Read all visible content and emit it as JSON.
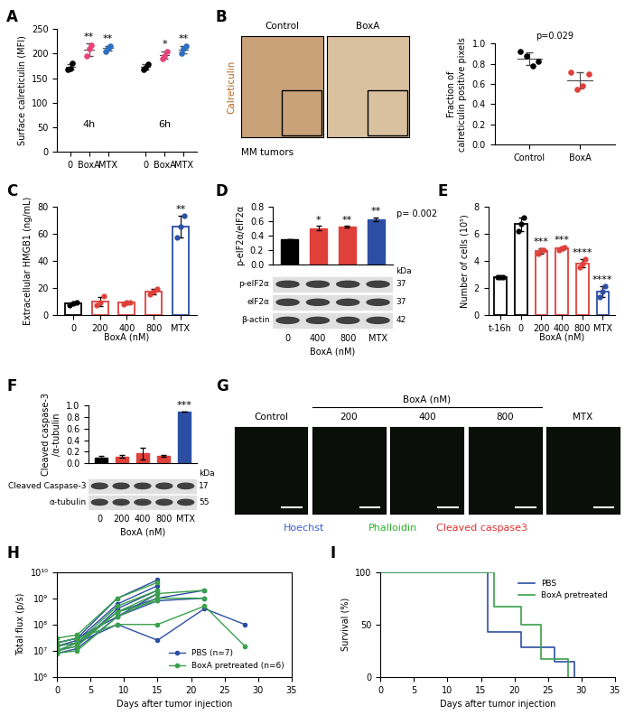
{
  "chart_data": [
    {
      "panel": "A",
      "type": "dot",
      "ylabel": "Surface calreticulin (MFI)",
      "groups": [
        "4h",
        "6h"
      ],
      "categories": [
        "0",
        "BoxA",
        "MTX",
        "0",
        "BoxA",
        "MTX"
      ],
      "colors": [
        "#000000",
        "#e8437a",
        "#2c6fc0",
        "#000000",
        "#e8437a",
        "#2c6fc0"
      ],
      "values": [
        173,
        208,
        211,
        173,
        197,
        208
      ],
      "error": [
        6,
        12,
        5,
        5,
        8,
        8
      ],
      "points": [
        [
          168,
          170,
          180
        ],
        [
          195,
          210,
          218
        ],
        [
          205,
          212,
          215
        ],
        [
          168,
          172,
          178
        ],
        [
          190,
          195,
          205
        ],
        [
          200,
          210,
          215
        ]
      ],
      "annotations": [
        "",
        "**",
        "**",
        "",
        "*",
        "**"
      ],
      "ylim": [
        0,
        250
      ],
      "yticks": [
        0,
        50,
        100,
        150,
        200,
        250
      ]
    },
    {
      "panel": "B",
      "type": "image",
      "titles": [
        "Control",
        "BoxA"
      ],
      "stain": "Calreticulin",
      "sample": "MM tumors"
    },
    {
      "type": "dot",
      "ylabel": "Fraction of\ncalreticulin positive pixels",
      "categories": [
        "Control",
        "BoxA"
      ],
      "colors": [
        "#000000",
        "#e0403a"
      ],
      "values": [
        0.85,
        0.64
      ],
      "error": [
        0.06,
        0.08
      ],
      "points": [
        [
          0.92,
          0.88,
          0.78,
          0.82
        ],
        [
          0.72,
          0.55,
          0.58,
          0.7
        ]
      ],
      "annotations": [
        "p=0.029"
      ],
      "ylim": [
        0.0,
        1.0
      ],
      "yticks": [
        0.0,
        0.2,
        0.4,
        0.6,
        0.8,
        1.0
      ]
    },
    {
      "panel": "C",
      "type": "bar",
      "ylabel": "Extracellular HMGB1 (ng/mL)",
      "categories": [
        "0",
        "200",
        "400",
        "800",
        "MTX"
      ],
      "group_label": "BoxA (nM)",
      "colors": [
        "#000000",
        "#e0403a",
        "#e0403a",
        "#e0403a",
        "#2c4fa3"
      ],
      "values": [
        8.5,
        10,
        9,
        17,
        65
      ],
      "error": [
        0.8,
        3.5,
        0.9,
        2.0,
        8.0
      ],
      "points": [
        [
          7.5,
          8.5,
          9
        ],
        [
          7,
          9,
          14
        ],
        [
          8,
          9,
          9.5
        ],
        [
          15,
          17,
          19
        ],
        [
          57,
          65,
          73
        ]
      ],
      "annotations": [
        "",
        "",
        "",
        "",
        "**"
      ],
      "ylim": [
        0,
        80
      ],
      "yticks": [
        0,
        20,
        40,
        60,
        80
      ]
    },
    {
      "panel": "D",
      "type": "bar",
      "ylabel": "p-eIF2α/eIF2α",
      "categories": [
        "0",
        "400",
        "800",
        "MTX"
      ],
      "group_label": "BoxA (nM)",
      "colors": [
        "#000000",
        "#e0403a",
        "#e0403a",
        "#2c4fa3"
      ],
      "values": [
        0.35,
        0.5,
        0.52,
        0.62
      ],
      "error": [
        0.0,
        0.03,
        0.01,
        0.03
      ],
      "annotations": [
        "",
        "*",
        "**",
        "**",
        "p= 0.002"
      ],
      "ylim": [
        0.0,
        0.8
      ],
      "yticks": [
        0.0,
        0.2,
        0.4,
        0.6,
        0.8
      ],
      "blot": {
        "unit": "kDa",
        "rows": [
          {
            "label": "p-eIF2α",
            "kDa": 37
          },
          {
            "label": "eIF2α",
            "kDa": 37
          },
          {
            "label": "β-actin",
            "kDa": 42
          }
        ]
      }
    },
    {
      "panel": "E",
      "type": "bar",
      "ylabel": "Number of cells (10⁵)",
      "categories": [
        "t-16h",
        "0",
        "200",
        "400",
        "800",
        "MTX"
      ],
      "group_label": "BoxA (nM)",
      "colors": [
        "#000000",
        "#000000",
        "#e0403a",
        "#e0403a",
        "#e0403a",
        "#2c4fa3"
      ],
      "values": [
        2.8,
        6.7,
        4.7,
        4.9,
        3.8,
        1.7
      ],
      "error": [
        0.0,
        0.5,
        0.2,
        0.1,
        0.3,
        0.4
      ],
      "points": [
        [
          2.8,
          2.8,
          2.8
        ],
        [
          6.2,
          6.7,
          7.2
        ],
        [
          4.5,
          4.8,
          4.8
        ],
        [
          4.8,
          4.9,
          5.0
        ],
        [
          3.5,
          3.8,
          4.1
        ],
        [
          1.3,
          1.7,
          2.1
        ]
      ],
      "annotations": [
        "",
        "",
        "***",
        "***",
        "****",
        "****"
      ],
      "ylim": [
        0,
        8
      ],
      "yticks": [
        0,
        2,
        4,
        6,
        8
      ]
    },
    {
      "panel": "F",
      "type": "bar",
      "ylabel": "Cleaved caspase-3\n/α-tubulin",
      "categories": [
        "0",
        "200",
        "400",
        "800",
        "MTX"
      ],
      "group_label": "BoxA (nM)",
      "colors": [
        "#000000",
        "#e0403a",
        "#e0403a",
        "#e0403a",
        "#2c4fa3"
      ],
      "values": [
        0.1,
        0.12,
        0.17,
        0.13,
        0.9
      ],
      "error": [
        0.03,
        0.02,
        0.1,
        0.02,
        0.0
      ],
      "annotations": [
        "",
        "",
        "",
        "",
        "***"
      ],
      "ylim": [
        0.0,
        1.0
      ],
      "yticks": [
        0.0,
        0.2,
        0.4,
        0.6,
        0.8,
        1.0
      ],
      "blot": {
        "unit": "kDa",
        "rows": [
          {
            "label": "Cleaved Caspase-3",
            "kDa": 17
          },
          {
            "label": "α-tubulin",
            "kDa": 55
          }
        ]
      }
    },
    {
      "panel": "G",
      "type": "image",
      "titles": [
        "Control",
        "200",
        "400",
        "800",
        "MTX"
      ],
      "group_label": "BoxA (nM)",
      "channels": [
        {
          "name": "Hoechst",
          "color": "#3a5fd9"
        },
        {
          "name": "Phalloidin",
          "color": "#2bb52b"
        },
        {
          "name": "Cleaved caspase3",
          "color": "#e03030"
        }
      ]
    },
    {
      "panel": "H",
      "type": "line",
      "log": "y",
      "xlabel": "Days after tumor injection",
      "ylabel": "Total flux (p/s)",
      "legend": "lower right",
      "xlim": [
        0,
        35
      ],
      "xticks": [
        0,
        5,
        10,
        15,
        20,
        25,
        30,
        35
      ],
      "ylim": [
        1000000,
        10000000000
      ],
      "yticks": [
        {
          "value": 1000000,
          "label": "10⁶"
        },
        {
          "value": 10000000,
          "label": "10⁷"
        },
        {
          "value": 100000000,
          "label": "10⁸"
        },
        {
          "value": 1000000000,
          "label": "10⁹"
        },
        {
          "value": 10000000000,
          "label": "10¹⁰"
        }
      ],
      "series": [
        {
          "name": "PBS (n=7)",
          "color": "#2c4fa3",
          "marker": "o",
          "lines": [
            {
              "x": [
                0,
                3,
                9,
                15
              ],
              "values": [
                20000000,
                30000000,
                1000000000,
                5000000000
              ]
            },
            {
              "x": [
                0,
                3,
                9,
                15
              ],
              "values": [
                15000000,
                25000000,
                600000000,
                3000000000
              ]
            },
            {
              "x": [
                0,
                3,
                9,
                15,
                22
              ],
              "values": [
                10000000,
                20000000,
                300000000,
                1000000000,
                2000000000
              ]
            },
            {
              "x": [
                0,
                3,
                9,
                15,
                22,
                28
              ],
              "values": [
                15000000,
                20000000,
                100000000,
                25000000,
                400000000,
                100000000
              ]
            },
            {
              "x": [
                0,
                3,
                9,
                15
              ],
              "values": [
                10000000,
                15000000,
                400000000,
                2000000000
              ]
            },
            {
              "x": [
                0,
                3,
                9,
                15
              ],
              "values": [
                8000000,
                12000000,
                200000000,
                1500000000
              ]
            },
            {
              "x": [
                0,
                3,
                9,
                15,
                22
              ],
              "values": [
                20000000,
                30000000,
                200000000,
                800000000,
                1000000000
              ]
            }
          ]
        },
        {
          "name": "BoxA pretreated (n=6)",
          "color": "#3aa04a",
          "marker": "o",
          "lines": [
            {
              "x": [
                0,
                3,
                9,
                15
              ],
              "values": [
                30000000,
                40000000,
                1000000000,
                4000000000
              ]
            },
            {
              "x": [
                0,
                3,
                9,
                15
              ],
              "values": [
                15000000,
                20000000,
                500000000,
                2000000000
              ]
            },
            {
              "x": [
                0,
                3,
                9,
                15,
                22
              ],
              "values": [
                10000000,
                15000000,
                300000000,
                1500000000,
                2000000000
              ]
            },
            {
              "x": [
                0,
                3,
                9,
                15,
                22,
                28
              ],
              "values": [
                20000000,
                30000000,
                100000000,
                100000000,
                500000000,
                15000000
              ]
            },
            {
              "x": [
                0,
                3,
                9,
                15
              ],
              "values": [
                10000000,
                20000000,
                300000000,
                800000000
              ]
            },
            {
              "x": [
                0,
                3,
                9,
                15,
                22
              ],
              "values": [
                8000000,
                10000000,
                200000000,
                1000000000,
                1000000000
              ]
            }
          ]
        }
      ]
    },
    {
      "panel": "I",
      "type": "step",
      "xlabel": "Days after tumor injection",
      "ylabel": "Survival (%)",
      "legend": "upper right",
      "xlim": [
        0,
        35
      ],
      "xticks": [
        0,
        5,
        10,
        15,
        20,
        25,
        30,
        35
      ],
      "ylim": [
        0,
        100
      ],
      "yticks": [
        0,
        50,
        100
      ],
      "series": [
        {
          "name": "PBS",
          "color": "#2c4fa3",
          "x": [
            0,
            16,
            21,
            26,
            29
          ],
          "values": [
            100,
            42.9,
            28.6,
            14.3,
            0
          ]
        },
        {
          "name": "BoxA pretreated",
          "color": "#3aa04a",
          "x": [
            0,
            17,
            21,
            24,
            28
          ],
          "values": [
            100,
            66.7,
            50,
            16.7,
            0
          ]
        }
      ]
    }
  ]
}
